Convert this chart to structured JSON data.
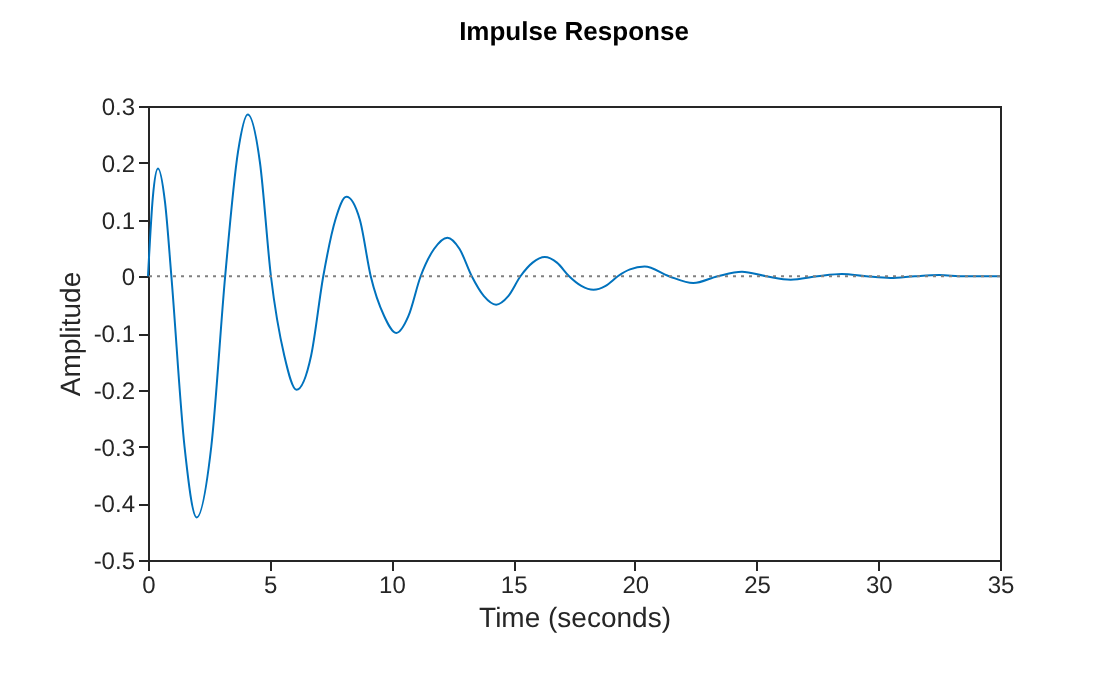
{
  "chart_data": {
    "type": "line",
    "title": "Impulse Response",
    "xlabel": "Time (seconds)",
    "ylabel": "Amplitude",
    "x": [
      0,
      0.2,
      0.41,
      0.7,
      0.96,
      1.5,
      2.0,
      2.6,
      3.17,
      3.7,
      4.1,
      4.6,
      5.05,
      5.6,
      6.1,
      6.7,
      7.2,
      7.7,
      8.15,
      8.7,
      9.15,
      9.7,
      10.2,
      10.7,
      11.2,
      11.75,
      12.3,
      12.8,
      13.3,
      13.8,
      14.3,
      14.8,
      15.3,
      15.8,
      16.3,
      16.8,
      17.3,
      17.8,
      18.3,
      18.8,
      19.3,
      19.8,
      20.4,
      21.4,
      22.4,
      23.4,
      24.4,
      25.4,
      26.4,
      27.5,
      28.5,
      29.5,
      30.5,
      31.5,
      32.5,
      33.5,
      35
    ],
    "series": [
      {
        "color": "#0072bd",
        "values": [
          0,
          0.14,
          0.19,
          0.13,
          0,
          -0.3,
          -0.425,
          -0.3,
          0,
          0.22,
          0.285,
          0.2,
          0,
          -0.14,
          -0.2,
          -0.14,
          0,
          0.1,
          0.14,
          0.1,
          0,
          -0.07,
          -0.1,
          -0.07,
          0,
          0.048,
          0.068,
          0.048,
          0,
          -0.035,
          -0.05,
          -0.035,
          0,
          0.024,
          0.034,
          0.024,
          0,
          -0.017,
          -0.024,
          -0.017,
          0,
          0.012,
          0.017,
          0,
          -0.012,
          0,
          0.008,
          0,
          -0.006,
          0,
          0.004,
          0,
          -0.003,
          0,
          0.002,
          0,
          0
        ]
      }
    ],
    "xlim": [
      0,
      35
    ],
    "ylim": [
      -0.5,
      0.3
    ],
    "xticks": [
      0,
      5,
      10,
      15,
      20,
      25,
      30,
      35
    ],
    "yticks": [
      -0.5,
      -0.4,
      -0.3,
      -0.2,
      -0.1,
      0,
      0.1,
      0.2,
      0.3
    ],
    "ref_lines": [
      {
        "axis": "y",
        "value": 0,
        "color": "#808080",
        "line_style": "dotted"
      }
    ],
    "grid": false,
    "marker": "none",
    "line_style": "solid"
  }
}
